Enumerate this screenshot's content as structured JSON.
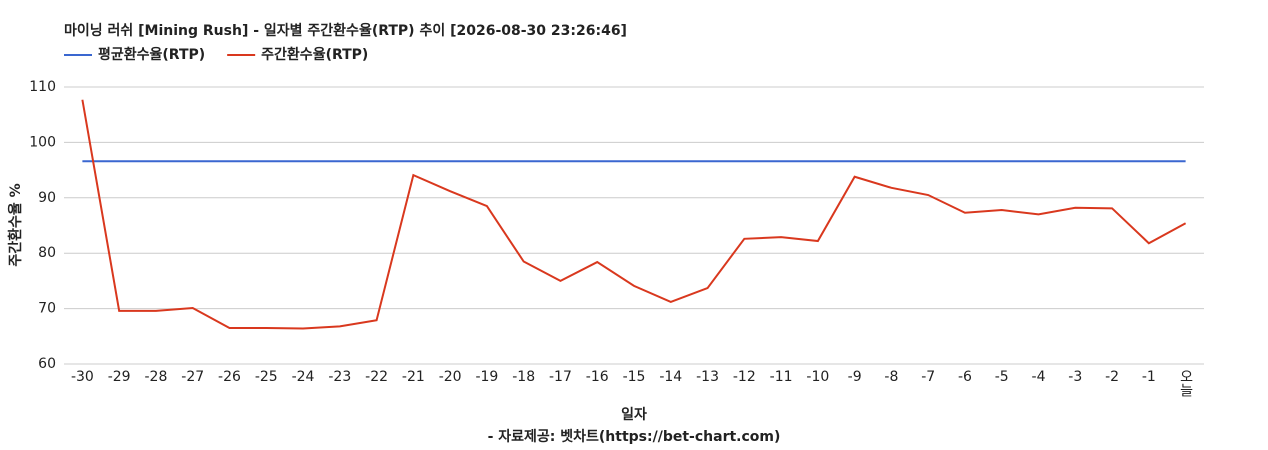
{
  "chart_data": {
    "type": "line",
    "title": "마이닝 러쉬 [Mining Rush] - 일자별 주간환수율(RTP) 추이 [2026-08-30 23:26:46]",
    "x_label": "일자",
    "y_label": "주간환수율 %",
    "source": "- 자료제공: 벳차트(https://bet-chart.com)",
    "categories": [
      "-30",
      "-29",
      "-28",
      "-27",
      "-26",
      "-25",
      "-24",
      "-23",
      "-22",
      "-21",
      "-20",
      "-19",
      "-18",
      "-17",
      "-16",
      "-15",
      "-14",
      "-13",
      "-12",
      "-11",
      "-10",
      "-9",
      "-8",
      "-7",
      "-6",
      "-5",
      "-4",
      "-3",
      "-2",
      "-1",
      "오늘"
    ],
    "series": [
      {
        "name": "평균환수율(RTP)",
        "color": "#3a67d0",
        "values": [
          96.6,
          96.6,
          96.6,
          96.6,
          96.6,
          96.6,
          96.6,
          96.6,
          96.6,
          96.6,
          96.6,
          96.6,
          96.6,
          96.6,
          96.6,
          96.6,
          96.6,
          96.6,
          96.6,
          96.6,
          96.6,
          96.6,
          96.6,
          96.6,
          96.6,
          96.6,
          96.6,
          96.6,
          96.6,
          96.6,
          96.6
        ]
      },
      {
        "name": "주간환수율(RTP)",
        "color": "#d9381e",
        "values": [
          107.7,
          69.6,
          69.6,
          70.1,
          66.5,
          66.5,
          66.4,
          66.8,
          67.9,
          94.1,
          91.2,
          88.5,
          78.5,
          75.0,
          78.4,
          74.1,
          71.2,
          73.7,
          82.6,
          82.9,
          82.2,
          93.8,
          91.8,
          90.5,
          87.3,
          87.8,
          87.0,
          88.2,
          88.1,
          81.8,
          85.4
        ]
      }
    ],
    "ylim": [
      60,
      110
    ],
    "yticks": [
      60,
      70,
      80,
      90,
      100,
      110
    ],
    "grid": true
  }
}
